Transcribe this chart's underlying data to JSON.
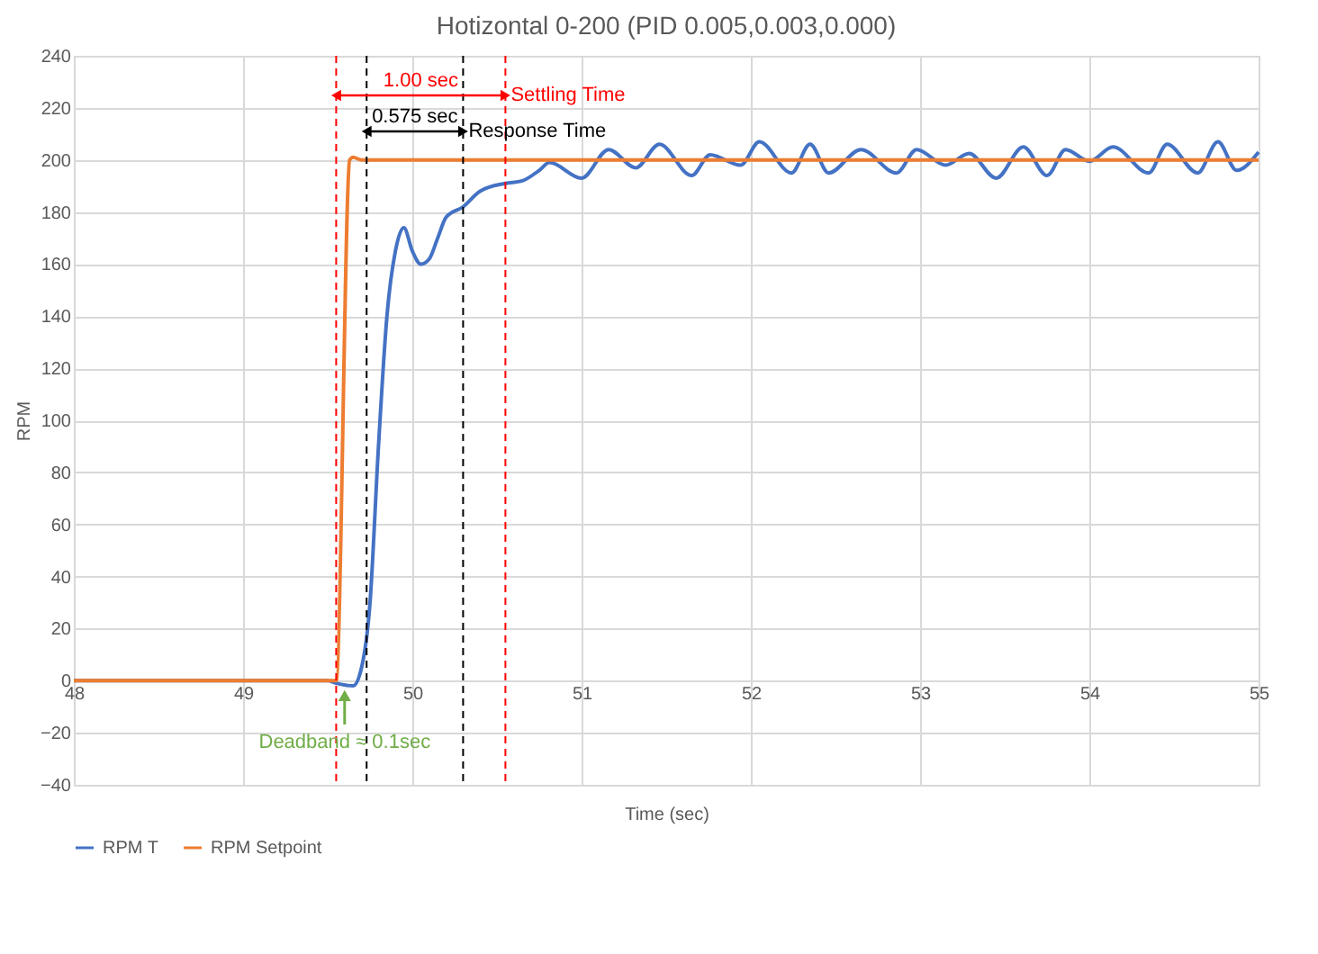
{
  "chart_data": {
    "type": "line",
    "title": "Hotizontal 0-200 (PID 0.005,0.003,0.000)",
    "xlabel": "Time (sec)",
    "ylabel": "RPM",
    "xlim": [
      48,
      55
    ],
    "xticks": [
      48,
      49,
      50,
      51,
      52,
      53,
      54,
      55
    ],
    "ylim": [
      -40,
      240
    ],
    "yticks": [
      -40,
      -20,
      0,
      20,
      40,
      60,
      80,
      100,
      120,
      140,
      160,
      180,
      200,
      220,
      240
    ],
    "grid": true,
    "legend": "bottom",
    "marker": "none",
    "line_style": "solid",
    "series": [
      {
        "name": "RPM T",
        "color": "#4472c4",
        "x": [
          48,
          49.5,
          49.55,
          49.65,
          49.7,
          49.75,
          49.8,
          49.85,
          49.9,
          49.95,
          50.0,
          50.05,
          50.1,
          50.15,
          50.2,
          50.3,
          50.4,
          50.55,
          50.65,
          50.75,
          50.81,
          51.0,
          51.16,
          51.32,
          51.46,
          51.65,
          51.76,
          51.94,
          52.05,
          52.24,
          52.35,
          52.46,
          52.65,
          52.86,
          52.98,
          53.15,
          53.29,
          53.45,
          53.61,
          53.75,
          53.86,
          54.0,
          54.14,
          54.35,
          54.46,
          54.64,
          54.76,
          54.87,
          55
        ],
        "values": [
          0,
          0,
          -1,
          -2,
          5,
          30,
          90,
          140,
          165,
          174,
          165,
          160,
          162,
          170,
          178,
          182,
          188,
          191,
          192,
          196,
          199,
          193,
          204,
          197,
          206,
          194,
          202,
          198,
          207,
          195,
          206,
          195,
          204,
          195,
          204,
          198,
          202.5,
          193,
          205,
          194,
          204,
          199.5,
          205,
          195,
          206,
          195,
          207,
          196,
          203
        ]
      },
      {
        "name": "RPM Setpoint",
        "color": "#ed7d31",
        "x": [
          48,
          49.5,
          49.55,
          49.63,
          49.65,
          49.7,
          55
        ],
        "values": [
          0,
          0,
          0,
          200,
          201,
          200,
          200
        ]
      }
    ],
    "ref_lines": [
      {
        "axis": "x",
        "value": 49.55,
        "color": "#ff0000",
        "line_style": "dashed"
      },
      {
        "axis": "x",
        "value": 50.55,
        "color": "#ff0000",
        "line_style": "dashed",
        "label": "Settling Time"
      },
      {
        "axis": "x",
        "value": 49.73,
        "color": "#000000",
        "line_style": "dashed"
      },
      {
        "axis": "x",
        "value": 50.3,
        "color": "#000000",
        "line_style": "dashed",
        "label": "Response Time"
      }
    ],
    "annotations": [
      "1.00 sec",
      "0.575 sec",
      {
        "text": "Deadband ≈ 0.1sec",
        "x": 49.6,
        "y": -3
      }
    ]
  }
}
